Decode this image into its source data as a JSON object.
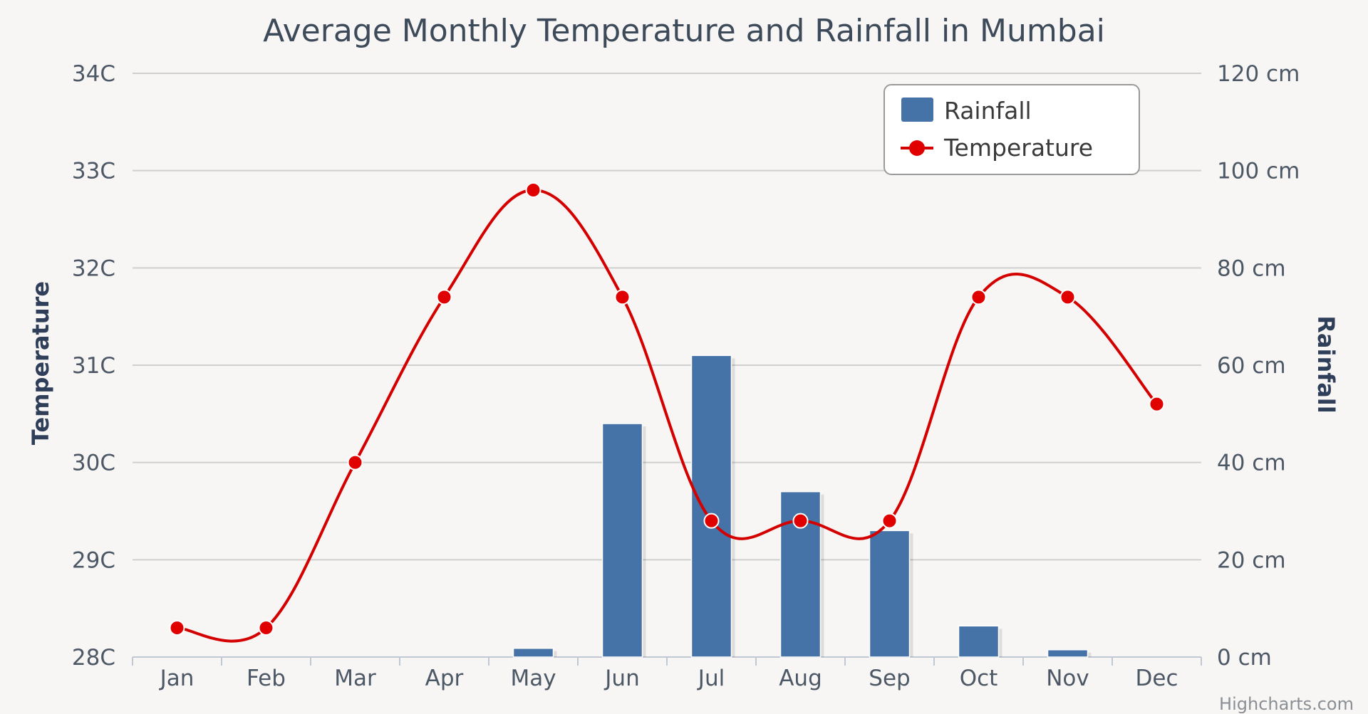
{
  "chart_data": {
    "type": "bar+line",
    "title": "Average Monthly Temperature and Rainfall in Mumbai",
    "categories": [
      "Jan",
      "Feb",
      "Mar",
      "Apr",
      "May",
      "Jun",
      "Jul",
      "Aug",
      "Sep",
      "Oct",
      "Nov",
      "Dec"
    ],
    "series": [
      {
        "name": "Rainfall",
        "type": "column",
        "axis": "right",
        "color": "#4572a7",
        "values": [
          0,
          0,
          0,
          0,
          1.8,
          48,
          62,
          34,
          26,
          6.4,
          1.5,
          0
        ]
      },
      {
        "name": "Temperature",
        "type": "spline",
        "axis": "left",
        "color": "#d40000",
        "values": [
          28.3,
          28.3,
          30.0,
          31.7,
          32.8,
          31.7,
          29.4,
          29.4,
          29.4,
          31.7,
          31.7,
          30.6
        ]
      }
    ],
    "left_axis": {
      "title": "Temperature",
      "ylim": [
        28,
        34
      ],
      "tick_labels": [
        "28C",
        "29C",
        "30C",
        "31C",
        "32C",
        "33C",
        "34C"
      ]
    },
    "right_axis": {
      "title": "Rainfall",
      "ylim": [
        0,
        120
      ],
      "tick_labels": [
        "0 cm",
        "20 cm",
        "40 cm",
        "60 cm",
        "80 cm",
        "100 cm",
        "120 cm"
      ]
    },
    "grid": true,
    "legend_position": "top-right",
    "credits": "Highcharts.com"
  }
}
